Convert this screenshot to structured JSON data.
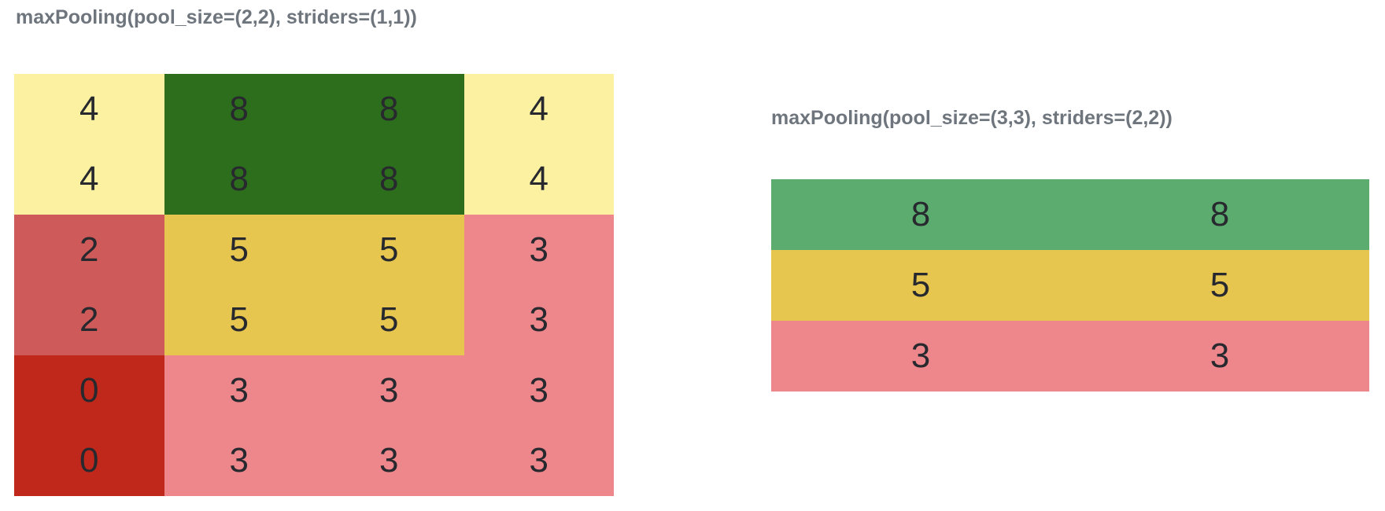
{
  "page": {
    "background": "#ffffff",
    "title_color": "#6e757d",
    "digit_color": "#27292e"
  },
  "palette": {
    "paleYellow": "#fbf1a1",
    "darkGreen": "#2d6e1c",
    "mediumGreen": "#5bac6e",
    "gold": "#e6c64f",
    "pink": "#ed878b",
    "indianRed": "#ce5a59",
    "darkRed": "#c1281c"
  },
  "panels": [
    {
      "id": "maxpool-2x2-strides-1x1",
      "title": "maxPooling(pool_size=(2,2), striders=(1,1))",
      "grid": {
        "rows": 6,
        "cols": 4,
        "cells": [
          [
            {
              "value": "4",
              "color": "paleYellow"
            },
            {
              "value": "8",
              "color": "darkGreen"
            },
            {
              "value": "8",
              "color": "darkGreen"
            },
            {
              "value": "4",
              "color": "paleYellow"
            }
          ],
          [
            {
              "value": "4",
              "color": "paleYellow"
            },
            {
              "value": "8",
              "color": "darkGreen"
            },
            {
              "value": "8",
              "color": "darkGreen"
            },
            {
              "value": "4",
              "color": "paleYellow"
            }
          ],
          [
            {
              "value": "2",
              "color": "indianRed"
            },
            {
              "value": "5",
              "color": "gold"
            },
            {
              "value": "5",
              "color": "gold"
            },
            {
              "value": "3",
              "color": "pink"
            }
          ],
          [
            {
              "value": "2",
              "color": "indianRed"
            },
            {
              "value": "5",
              "color": "gold"
            },
            {
              "value": "5",
              "color": "gold"
            },
            {
              "value": "3",
              "color": "pink"
            }
          ],
          [
            {
              "value": "0",
              "color": "darkRed"
            },
            {
              "value": "3",
              "color": "pink"
            },
            {
              "value": "3",
              "color": "pink"
            },
            {
              "value": "3",
              "color": "pink"
            }
          ],
          [
            {
              "value": "0",
              "color": "darkRed"
            },
            {
              "value": "3",
              "color": "pink"
            },
            {
              "value": "3",
              "color": "pink"
            },
            {
              "value": "3",
              "color": "pink"
            }
          ]
        ]
      }
    },
    {
      "id": "maxpool-3x3-strides-2x2",
      "title": "maxPooling(pool_size=(3,3), striders=(2,2))",
      "grid": {
        "rows": 3,
        "cols": 2,
        "cells": [
          [
            {
              "value": "8",
              "color": "mediumGreen"
            },
            {
              "value": "8",
              "color": "mediumGreen"
            }
          ],
          [
            {
              "value": "5",
              "color": "gold"
            },
            {
              "value": "5",
              "color": "gold"
            }
          ],
          [
            {
              "value": "3",
              "color": "pink"
            },
            {
              "value": "3",
              "color": "pink"
            }
          ]
        ]
      }
    }
  ]
}
